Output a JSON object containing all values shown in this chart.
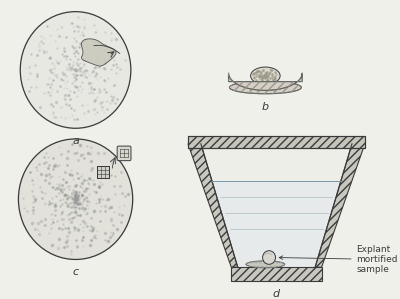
{
  "bg_color": "#f0f0eb",
  "line_color": "#3a3a3a",
  "label_a": "a",
  "label_b": "b",
  "label_c": "c",
  "label_d": "d",
  "annotation": "Explant\nmortified\nsample",
  "label_fontsize": 8,
  "annot_fontsize": 6.5
}
